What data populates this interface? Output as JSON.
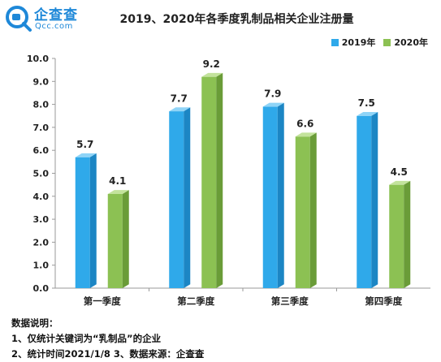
{
  "logo": {
    "text": "企查查",
    "sub": "Qcc.com"
  },
  "title": "2019、2020年各季度乳制品相关企业注册量",
  "colors": {
    "series_2019": "#2fa9ea",
    "series_2019_dark": "#1c86c4",
    "series_2019_top": "#8fd4f7",
    "series_2020": "#8cc153",
    "series_2020_dark": "#6a9c38",
    "series_2020_top": "#c3e39c",
    "logo": "#1e88d8"
  },
  "chart_data": {
    "type": "bar",
    "categories": [
      "第一季度",
      "第二季度",
      "第三季度",
      "第四季度"
    ],
    "series": [
      {
        "name": "2019年",
        "values": [
          5.7,
          7.7,
          7.9,
          7.5
        ]
      },
      {
        "name": "2020年",
        "values": [
          4.1,
          9.2,
          6.6,
          4.5
        ]
      }
    ],
    "ylim": [
      0,
      10
    ],
    "yticks": [
      "0.0",
      "1.0",
      "2.0",
      "3.0",
      "4.0",
      "5.0",
      "6.0",
      "7.0",
      "8.0",
      "9.0",
      "10.0"
    ],
    "data_labels": [
      [
        "5.7",
        "7.7",
        "7.9",
        "7.5"
      ],
      [
        "4.1",
        "9.2",
        "6.6",
        "4.5"
      ]
    ],
    "grid": false,
    "legend_position": "top-right",
    "style": "3d-bar"
  },
  "notes": {
    "heading": "数据说明：",
    "line1": "1、仅统计关键词为“乳制品”的企业",
    "line2": "2、统计时间2021/1/8  3、数据来源：企查查"
  }
}
